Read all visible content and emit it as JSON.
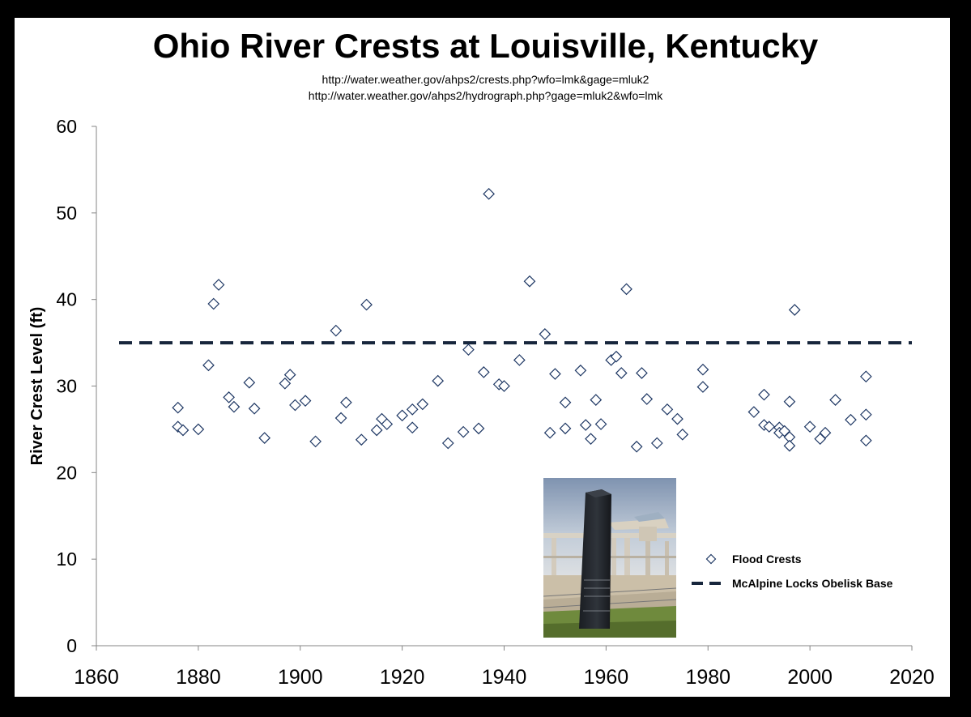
{
  "header": {
    "title": "Ohio River Crests at Louisville, Kentucky",
    "subtitle1": "http://water.weather.gov/ahps2/crests.php?wfo=lmk&gage=mluk2",
    "subtitle2": "http://water.weather.gov/ahps2/hydrograph.php?gage=mluk2&wfo=lmk"
  },
  "colors": {
    "background": "#000000",
    "plot_area": "#ffffff",
    "marker_stroke": "#1f3864",
    "marker_fill": "#ffffff",
    "reference_line": "#17263c"
  },
  "chart_data": {
    "type": "scatter",
    "title": "Ohio River Crests at Louisville, Kentucky",
    "xlabel": "",
    "ylabel": "River Crest Level (ft)",
    "xlim": [
      1860,
      2020
    ],
    "ylim": [
      0,
      60
    ],
    "xticks": [
      1860,
      1880,
      1900,
      1920,
      1940,
      1960,
      1980,
      2000,
      2020
    ],
    "yticks": [
      0,
      10,
      20,
      30,
      40,
      50,
      60
    ],
    "grid": false,
    "legend_position": "bottom-right",
    "series": [
      {
        "name": "Flood Crests",
        "marker": "diamond",
        "points": [
          [
            1876,
            25.3
          ],
          [
            1876,
            27.5
          ],
          [
            1877,
            24.9
          ],
          [
            1880,
            25.0
          ],
          [
            1882,
            32.4
          ],
          [
            1883,
            39.5
          ],
          [
            1884,
            41.7
          ],
          [
            1886,
            28.7
          ],
          [
            1887,
            27.6
          ],
          [
            1890,
            30.4
          ],
          [
            1891,
            27.4
          ],
          [
            1893,
            24.0
          ],
          [
            1897,
            30.3
          ],
          [
            1898,
            31.3
          ],
          [
            1899,
            27.8
          ],
          [
            1901,
            28.3
          ],
          [
            1903,
            23.6
          ],
          [
            1907,
            36.4
          ],
          [
            1908,
            26.3
          ],
          [
            1909,
            28.1
          ],
          [
            1912,
            23.8
          ],
          [
            1913,
            39.4
          ],
          [
            1915,
            24.9
          ],
          [
            1916,
            26.2
          ],
          [
            1917,
            25.6
          ],
          [
            1920,
            26.6
          ],
          [
            1922,
            27.3
          ],
          [
            1922,
            25.2
          ],
          [
            1924,
            27.9
          ],
          [
            1927,
            30.6
          ],
          [
            1929,
            23.4
          ],
          [
            1932,
            24.7
          ],
          [
            1933,
            34.2
          ],
          [
            1935,
            25.1
          ],
          [
            1936,
            31.6
          ],
          [
            1937,
            52.2
          ],
          [
            1939,
            30.2
          ],
          [
            1940,
            30.0
          ],
          [
            1943,
            33.0
          ],
          [
            1945,
            42.1
          ],
          [
            1948,
            36.0
          ],
          [
            1949,
            24.6
          ],
          [
            1950,
            31.4
          ],
          [
            1952,
            28.1
          ],
          [
            1952,
            25.1
          ],
          [
            1955,
            31.8
          ],
          [
            1956,
            25.5
          ],
          [
            1957,
            23.9
          ],
          [
            1958,
            28.4
          ],
          [
            1959,
            25.6
          ],
          [
            1961,
            33.0
          ],
          [
            1962,
            33.4
          ],
          [
            1963,
            31.5
          ],
          [
            1964,
            41.2
          ],
          [
            1966,
            23.0
          ],
          [
            1967,
            31.5
          ],
          [
            1968,
            28.5
          ],
          [
            1970,
            23.4
          ],
          [
            1972,
            27.3
          ],
          [
            1974,
            26.2
          ],
          [
            1975,
            24.4
          ],
          [
            1979,
            31.9
          ],
          [
            1979,
            29.9
          ],
          [
            1989,
            27.0
          ],
          [
            1991,
            29.0
          ],
          [
            1991,
            25.5
          ],
          [
            1992,
            25.3
          ],
          [
            1994,
            25.2
          ],
          [
            1994,
            24.6
          ],
          [
            1995,
            24.8
          ],
          [
            1996,
            28.2
          ],
          [
            1996,
            24.1
          ],
          [
            1996,
            23.1
          ],
          [
            1997,
            38.8
          ],
          [
            2000,
            25.3
          ],
          [
            2002,
            23.9
          ],
          [
            2003,
            24.6
          ],
          [
            2005,
            28.4
          ],
          [
            2008,
            26.1
          ],
          [
            2011,
            31.1
          ],
          [
            2011,
            26.7
          ],
          [
            2011,
            23.7
          ]
        ]
      },
      {
        "name": "McAlpine Locks Obelisk Base",
        "type": "reference_line",
        "style": "dashed",
        "y": 35
      }
    ]
  },
  "photo": {
    "description_icon": "obelisk-photo"
  }
}
